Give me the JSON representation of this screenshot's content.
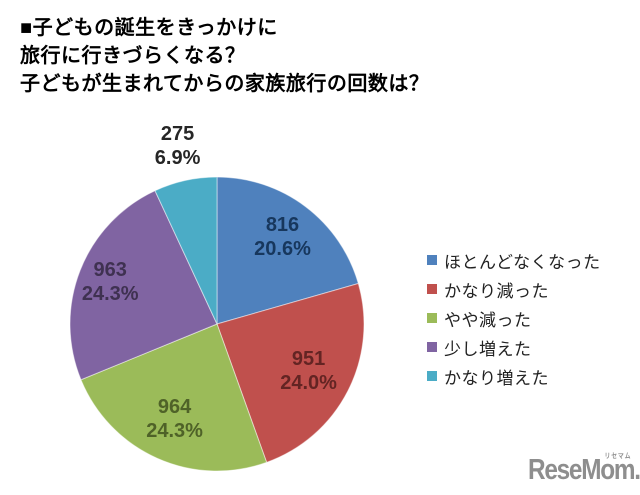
{
  "title": {
    "line1": "■子どもの誕生をきっかけに",
    "line2": "旅行に行きづらくなる？",
    "line3": "子どもが生まれてからの家族旅行の回数は？"
  },
  "chart_data": {
    "type": "pie",
    "title": "子どもが生まれてからの家族旅行の回数は？",
    "start_angle_deg": 0,
    "direction": "clockwise",
    "legend_position": "right",
    "slices": [
      {
        "label": "ほとんどなくなった",
        "value": 816,
        "pct": "20.6%",
        "color": "#4F81BD",
        "label_color": "#17375D",
        "label_placement": "inside"
      },
      {
        "label": "かなり減った",
        "value": 951,
        "pct": "24.0%",
        "color": "#C0504D",
        "label_color": "#632423",
        "label_placement": "inside"
      },
      {
        "label": "やや減った",
        "value": 964,
        "pct": "24.3%",
        "color": "#9BBB59",
        "label_color": "#4F6228",
        "label_placement": "inside"
      },
      {
        "label": "少し増えた",
        "value": 963,
        "pct": "24.3%",
        "color": "#8064A2",
        "label_color": "#3F3151",
        "label_placement": "inside"
      },
      {
        "label": "かなり増えた",
        "value": 275,
        "pct": "6.9%",
        "color": "#4BACC6",
        "label_color": "#262626",
        "label_placement": "outside"
      }
    ]
  },
  "watermark": {
    "text": "ReseMom.",
    "furigana": "リセマム",
    "color": "#8e8e8e"
  }
}
